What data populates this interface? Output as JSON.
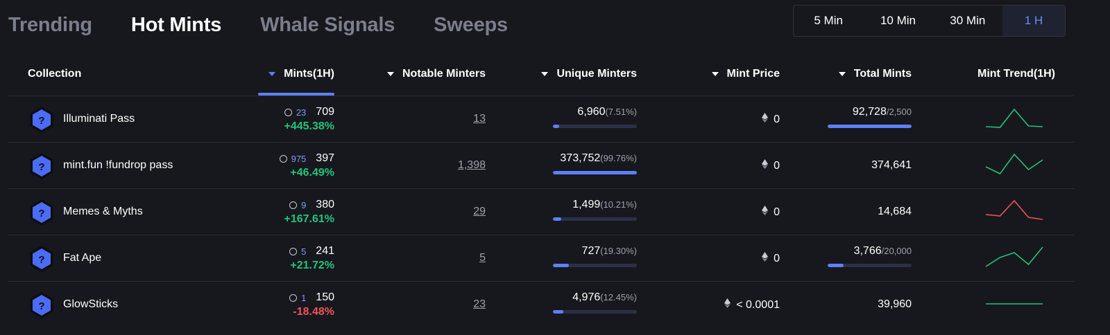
{
  "tabs": [
    {
      "label": "Trending",
      "active": false
    },
    {
      "label": "Hot Mints",
      "active": true
    },
    {
      "label": "Whale Signals",
      "active": false
    },
    {
      "label": "Sweeps",
      "active": false
    }
  ],
  "time_range": {
    "options": [
      "5 Min",
      "10 Min",
      "30 Min",
      "1 H"
    ],
    "selected": "1 H"
  },
  "columns": {
    "collection": "Collection",
    "mints": "Mints(1H)",
    "notable": "Notable Minters",
    "unique": "Unique Minters",
    "price": "Mint Price",
    "total": "Total Mints",
    "trend": "Mint Trend(1H)"
  },
  "sorted_column": "mints",
  "colors": {
    "accent": "#5c80ff",
    "positive": "#22c37a",
    "negative": "#f0525a",
    "avatar": "#4a6cf7"
  },
  "rows": [
    {
      "name": "Illuminati Pass",
      "avatar_icon": "question-mark-icon",
      "minter_count": "23",
      "mints": "709",
      "change": "+445.38%",
      "change_dir": "pos",
      "notable": "13",
      "unique": "6,960",
      "unique_pct": "(7.51%)",
      "unique_fill": 0.0751,
      "price": "0",
      "total": "92,728",
      "total_max": "/2,500",
      "total_fill": 1.0,
      "trend": [
        3,
        2,
        28,
        4,
        3
      ]
    },
    {
      "name": "mint.fun !fundrop pass",
      "avatar_icon": "question-mark-icon",
      "minter_count": "975",
      "mints": "397",
      "change": "+46.49%",
      "change_dir": "pos",
      "notable": "1,398",
      "unique": "373,752",
      "unique_pct": "(99.76%)",
      "unique_fill": 0.9976,
      "price": "0",
      "total": "374,641",
      "total_max": "",
      "total_fill": null,
      "trend": [
        12,
        2,
        30,
        8,
        22
      ]
    },
    {
      "name": "Memes & Myths",
      "avatar_icon": "question-mark-icon",
      "minter_count": "9",
      "mints": "380",
      "change": "+167.61%",
      "change_dir": "pos",
      "notable": "29",
      "unique": "1,499",
      "unique_pct": "(10.21%)",
      "unique_fill": 0.1021,
      "price": "0",
      "total": "14,684",
      "total_max": "",
      "total_fill": null,
      "trend": [
        10,
        8,
        30,
        6,
        3
      ],
      "trend_color": "neg"
    },
    {
      "name": "Fat Ape",
      "avatar_icon": "question-mark-icon",
      "minter_count": "5",
      "mints": "241",
      "change": "+21.72%",
      "change_dir": "pos",
      "notable": "5",
      "unique": "727",
      "unique_pct": "(19.30%)",
      "unique_fill": 0.193,
      "price": "0",
      "total": "3,766",
      "total_max": "/20,000",
      "total_fill": 0.1883,
      "trend": [
        2,
        15,
        22,
        5,
        30
      ]
    },
    {
      "name": "GlowSticks",
      "avatar_icon": "question-mark-icon",
      "minter_count": "1",
      "mints": "150",
      "change": "-18.48%",
      "change_dir": "neg",
      "notable": "23",
      "unique": "4,976",
      "unique_pct": "(12.45%)",
      "unique_fill": 0.1245,
      "price": "< 0.0001",
      "total": "39,960",
      "total_max": "",
      "total_fill": null,
      "trend": [
        15,
        15,
        15,
        15,
        15
      ]
    }
  ]
}
